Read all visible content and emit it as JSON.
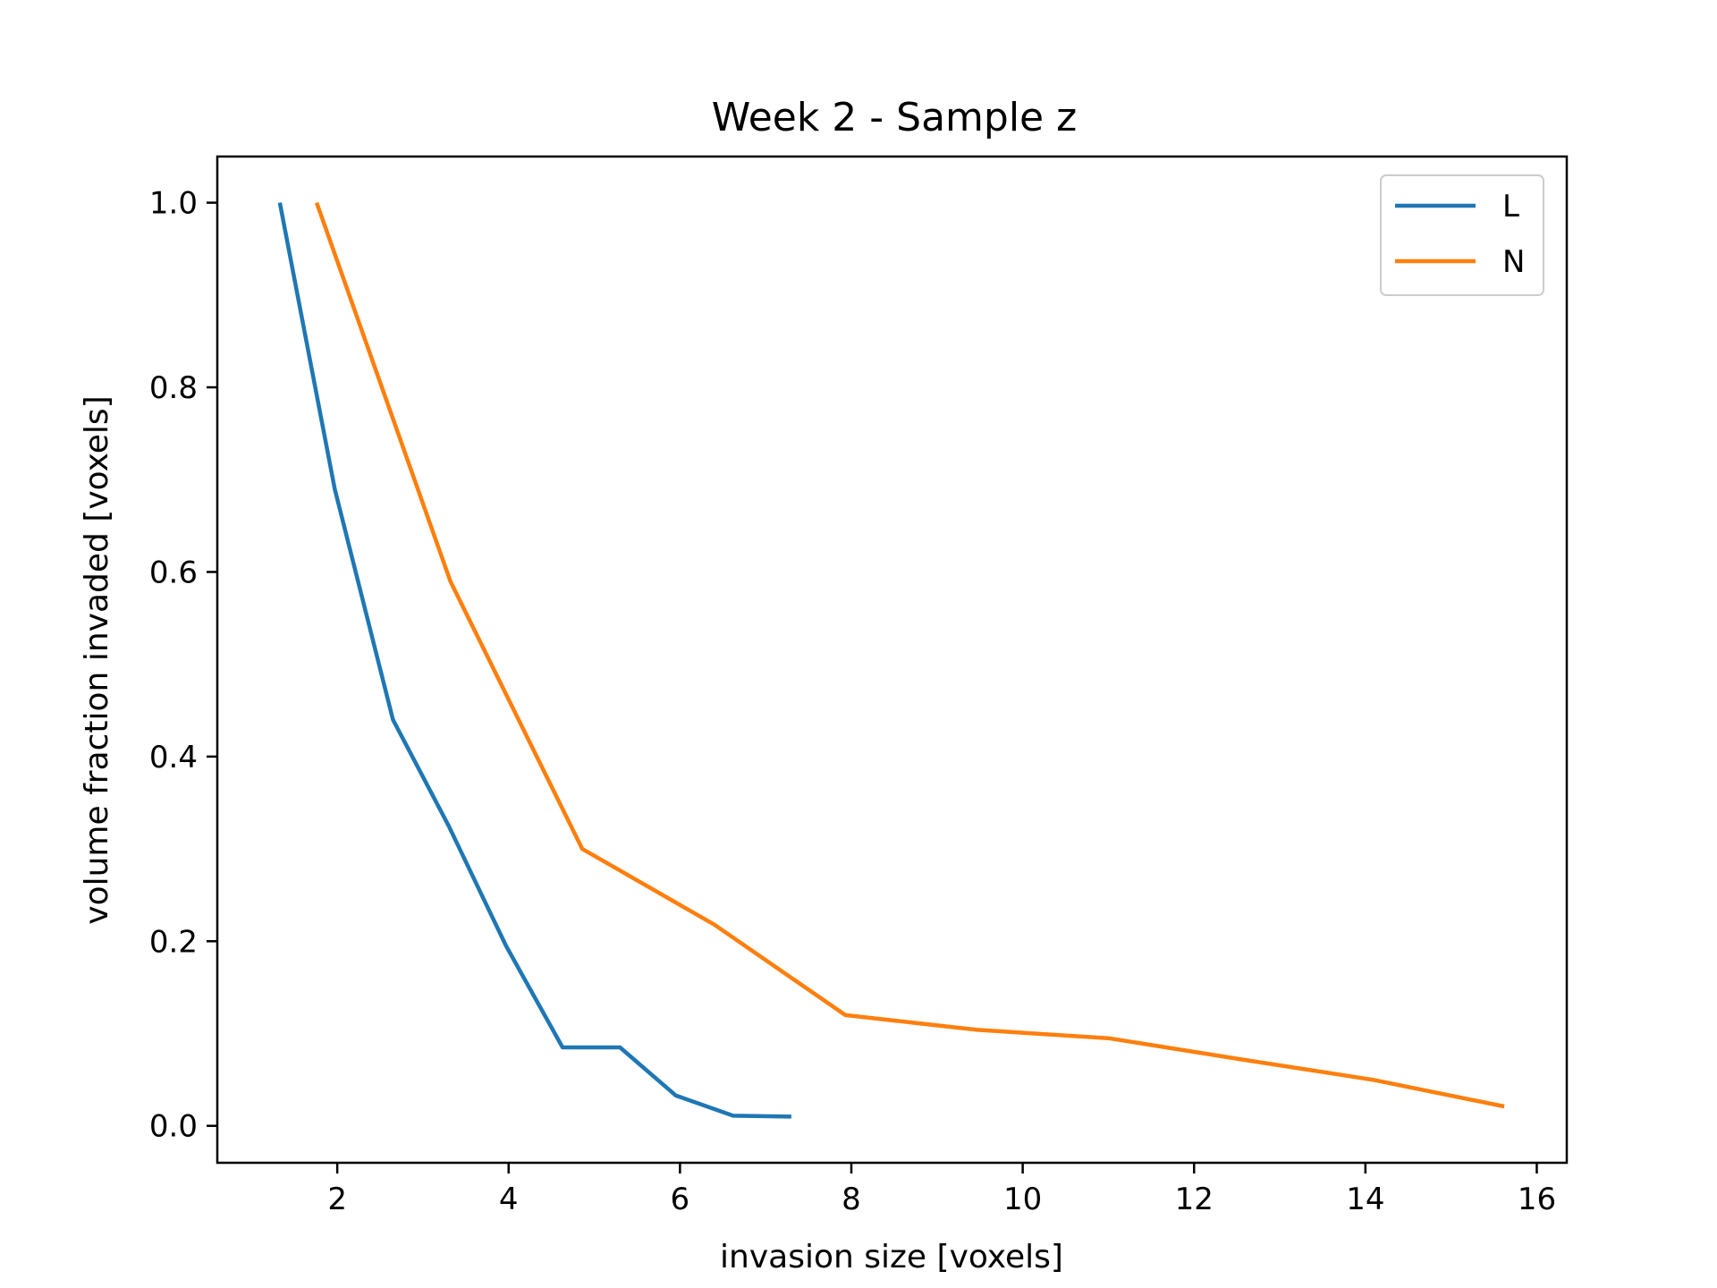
{
  "chart_data": {
    "type": "line",
    "title": "Week 2 - Sample z",
    "xlabel": "invasion size [voxels]",
    "ylabel": "volume fraction invaded [voxels]",
    "xlim": [
      0.6,
      16.35
    ],
    "ylim": [
      -0.04,
      1.05
    ],
    "xticks": [
      2,
      4,
      6,
      8,
      10,
      12,
      14,
      16
    ],
    "yticks": [
      0.0,
      0.2,
      0.4,
      0.6,
      0.8,
      1.0
    ],
    "xtick_labels": [
      "2",
      "4",
      "6",
      "8",
      "10",
      "12",
      "14",
      "16"
    ],
    "ytick_labels": [
      "0.0",
      "0.2",
      "0.4",
      "0.6",
      "0.8",
      "1.0"
    ],
    "grid": false,
    "legend": "top-right",
    "series": [
      {
        "name": "L",
        "color": "#1f77b4",
        "points": [
          [
            1.33,
            1.0
          ],
          [
            1.97,
            0.69
          ],
          [
            2.65,
            0.44
          ],
          [
            3.3,
            0.325
          ],
          [
            3.97,
            0.195
          ],
          [
            4.63,
            0.085
          ],
          [
            5.3,
            0.085
          ],
          [
            5.95,
            0.033
          ],
          [
            6.62,
            0.011
          ],
          [
            7.3,
            0.01
          ]
        ]
      },
      {
        "name": "N",
        "color": "#ff7f0e",
        "points": [
          [
            1.76,
            1.0
          ],
          [
            3.32,
            0.59
          ],
          [
            4.86,
            0.3
          ],
          [
            6.4,
            0.218
          ],
          [
            7.93,
            0.12
          ],
          [
            9.47,
            0.104
          ],
          [
            11.0,
            0.095
          ],
          [
            12.55,
            0.072
          ],
          [
            14.08,
            0.05
          ],
          [
            15.62,
            0.021
          ]
        ]
      }
    ]
  }
}
